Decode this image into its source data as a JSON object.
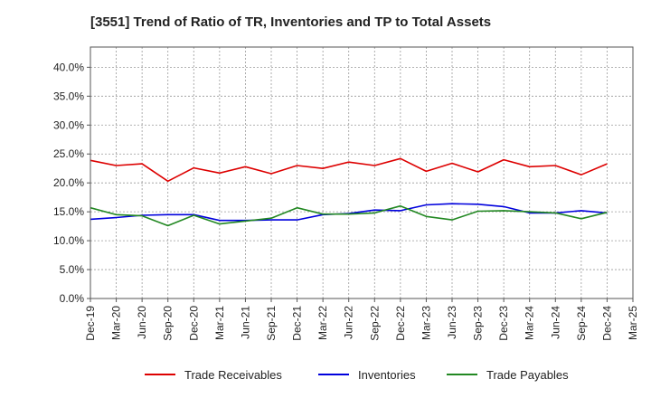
{
  "title": "[3551]  Trend of Ratio of TR, Inventories and TP to Total Assets",
  "chart_data": {
    "type": "line",
    "title": "[3551]  Trend of Ratio of TR, Inventories and TP to Total Assets",
    "xlabel": "",
    "ylabel": "",
    "x_tick_labels": [
      "Dec-19",
      "Mar-20",
      "Jun-20",
      "Sep-20",
      "Dec-20",
      "Mar-21",
      "Jun-21",
      "Sep-21",
      "Dec-21",
      "Mar-22",
      "Jun-22",
      "Sep-22",
      "Dec-22",
      "Mar-23",
      "Jun-23",
      "Sep-23",
      "Dec-23",
      "Mar-24",
      "Jun-24",
      "Sep-24",
      "Dec-24",
      "Mar-25"
    ],
    "categories": [
      "Dec-19",
      "Mar-20",
      "Jun-20",
      "Sep-20",
      "Dec-20",
      "Mar-21",
      "Jun-21",
      "Sep-21",
      "Dec-21",
      "Mar-22",
      "Jun-22",
      "Sep-22",
      "Dec-22",
      "Mar-23",
      "Jun-23",
      "Sep-23",
      "Dec-23",
      "Mar-24",
      "Jun-24",
      "Sep-24",
      "Dec-24"
    ],
    "y_tick_labels": [
      "0.0%",
      "5.0%",
      "10.0%",
      "15.0%",
      "20.0%",
      "25.0%",
      "30.0%",
      "35.0%",
      "40.0%"
    ],
    "ylim": [
      0,
      43.5
    ],
    "grid": true,
    "legend_position": "bottom",
    "series": [
      {
        "name": "Trade Receivables",
        "color": "#dd0000",
        "values": [
          23.9,
          23.0,
          23.3,
          20.3,
          22.6,
          21.7,
          22.8,
          21.6,
          23.0,
          22.5,
          23.6,
          23.0,
          24.2,
          22.0,
          23.4,
          21.9,
          24.0,
          22.8,
          23.0,
          21.4,
          23.3
        ]
      },
      {
        "name": "Inventories",
        "color": "#0000dd",
        "values": [
          13.7,
          14.0,
          14.4,
          14.5,
          14.5,
          13.5,
          13.5,
          13.6,
          13.6,
          14.5,
          14.7,
          15.3,
          15.2,
          16.2,
          16.4,
          16.3,
          15.9,
          14.8,
          14.8,
          15.2,
          14.8
        ]
      },
      {
        "name": "Trade Payables",
        "color": "#228822",
        "values": [
          15.7,
          14.5,
          14.3,
          12.6,
          14.4,
          12.9,
          13.4,
          13.9,
          15.7,
          14.6,
          14.6,
          14.8,
          16.0,
          14.2,
          13.6,
          15.1,
          15.2,
          15.0,
          14.8,
          13.8,
          14.9
        ]
      }
    ]
  }
}
